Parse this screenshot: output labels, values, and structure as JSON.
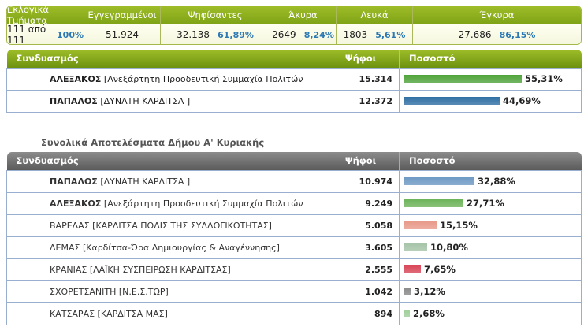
{
  "summary": {
    "sections": {
      "label": "Εκλογικά Τμήματα",
      "value": "111 από 111",
      "pct": "100%"
    },
    "registered": {
      "label": "Εγγεγραμμένοι",
      "value": "51.924"
    },
    "voted": {
      "label": "Ψηφίσαντες",
      "value": "32.138",
      "pct": "61,89%"
    },
    "invalid": {
      "label": "Άκυρα",
      "value": "2649",
      "pct": "8,24%"
    },
    "blank": {
      "label": "Λευκά",
      "value": "1803",
      "pct": "5,61%"
    },
    "valid": {
      "label": "Έγκυρα",
      "value": "27.686",
      "pct": "86,15%"
    }
  },
  "top_table": {
    "headers": {
      "combination": "Συνδυασμός",
      "votes": "Ψήφοι",
      "percent": "Ποσοστό"
    },
    "rows": [
      {
        "candidate": "ΑΛΕΞΑΚΟΣ",
        "party": "[Ανεξάρτητη Προοδευτική Συμμαχία Πολιτών",
        "votes": "15.314",
        "percent": "55,31%",
        "fraction": 0.5531,
        "color": "#4fa33a"
      },
      {
        "candidate": "ΠΑΠΑΛΟΣ",
        "party": "[ΔΥΝΑΤΗ ΚΑΡΔΙΤΣΑ ]",
        "votes": "12.372",
        "percent": "44,69%",
        "fraction": 0.4469,
        "color": "#2f6fa3"
      }
    ]
  },
  "section_title": "Συνολικά Αποτελέσματα Δήμου Α' Κυριακής",
  "bottom_table": {
    "headers": {
      "combination": "Συνδυασμός",
      "votes": "Ψήφοι",
      "percent": "Ποσοστό"
    },
    "rows": [
      {
        "candidate": "ΠΑΠΑΛΟΣ",
        "party": "[ΔΥΝΑΤΗ ΚΑΡΔΙΤΣΑ ]",
        "votes": "10.974",
        "percent": "32,88%",
        "fraction": 0.3288,
        "color": "#6f9ac4"
      },
      {
        "candidate": "ΑΛΕΞΑΚΟΣ",
        "party": "[Ανεξάρτητη Προοδευτική Συμμαχία Πολιτών",
        "votes": "9.249",
        "percent": "27,71%",
        "fraction": 0.2771,
        "color": "#6db35a"
      },
      {
        "candidate": "",
        "party": "ΒΑΡΕΛΑΣ [ΚΑΡΔΙΤΣΑ ΠΟΛΙΣ ΤΗΣ ΣΥΛΛΟΓΙΚΟΤΗΤΑΣ]",
        "votes": "5.058",
        "percent": "15,15%",
        "fraction": 0.1515,
        "color": "#e89a8a"
      },
      {
        "candidate": "",
        "party": "ΛΕΜΑΣ [Καρδίτσα-Ώρα Δημιουργίας & Αναγέννησης]",
        "votes": "3.605",
        "percent": "10,80%",
        "fraction": 0.108,
        "color": "#a6c4a8"
      },
      {
        "candidate": "",
        "party": "ΚΡΑΝΙΑΣ [ΛΑΪΚΗ ΣΥΣΠΕΙΡΩΣΗ ΚΑΡΔΙΤΣΑΣ]",
        "votes": "2.555",
        "percent": "7,65%",
        "fraction": 0.0765,
        "color": "#d9485a"
      },
      {
        "candidate": "",
        "party": "ΣΧΟΡΕΤΣΑΝΙΤΗ [Ν.Ε.Σ.ΤΩΡ]",
        "votes": "1.042",
        "percent": "3,12%",
        "fraction": 0.0312,
        "color": "#8a8a8a"
      },
      {
        "candidate": "",
        "party": "ΚΑΤΣΑΡΑΣ [ΚΑΡΔΙΤΣΑ ΜΑΣ]",
        "votes": "894",
        "percent": "2,68%",
        "fraction": 0.0268,
        "color": "#9fcf9a"
      }
    ]
  }
}
